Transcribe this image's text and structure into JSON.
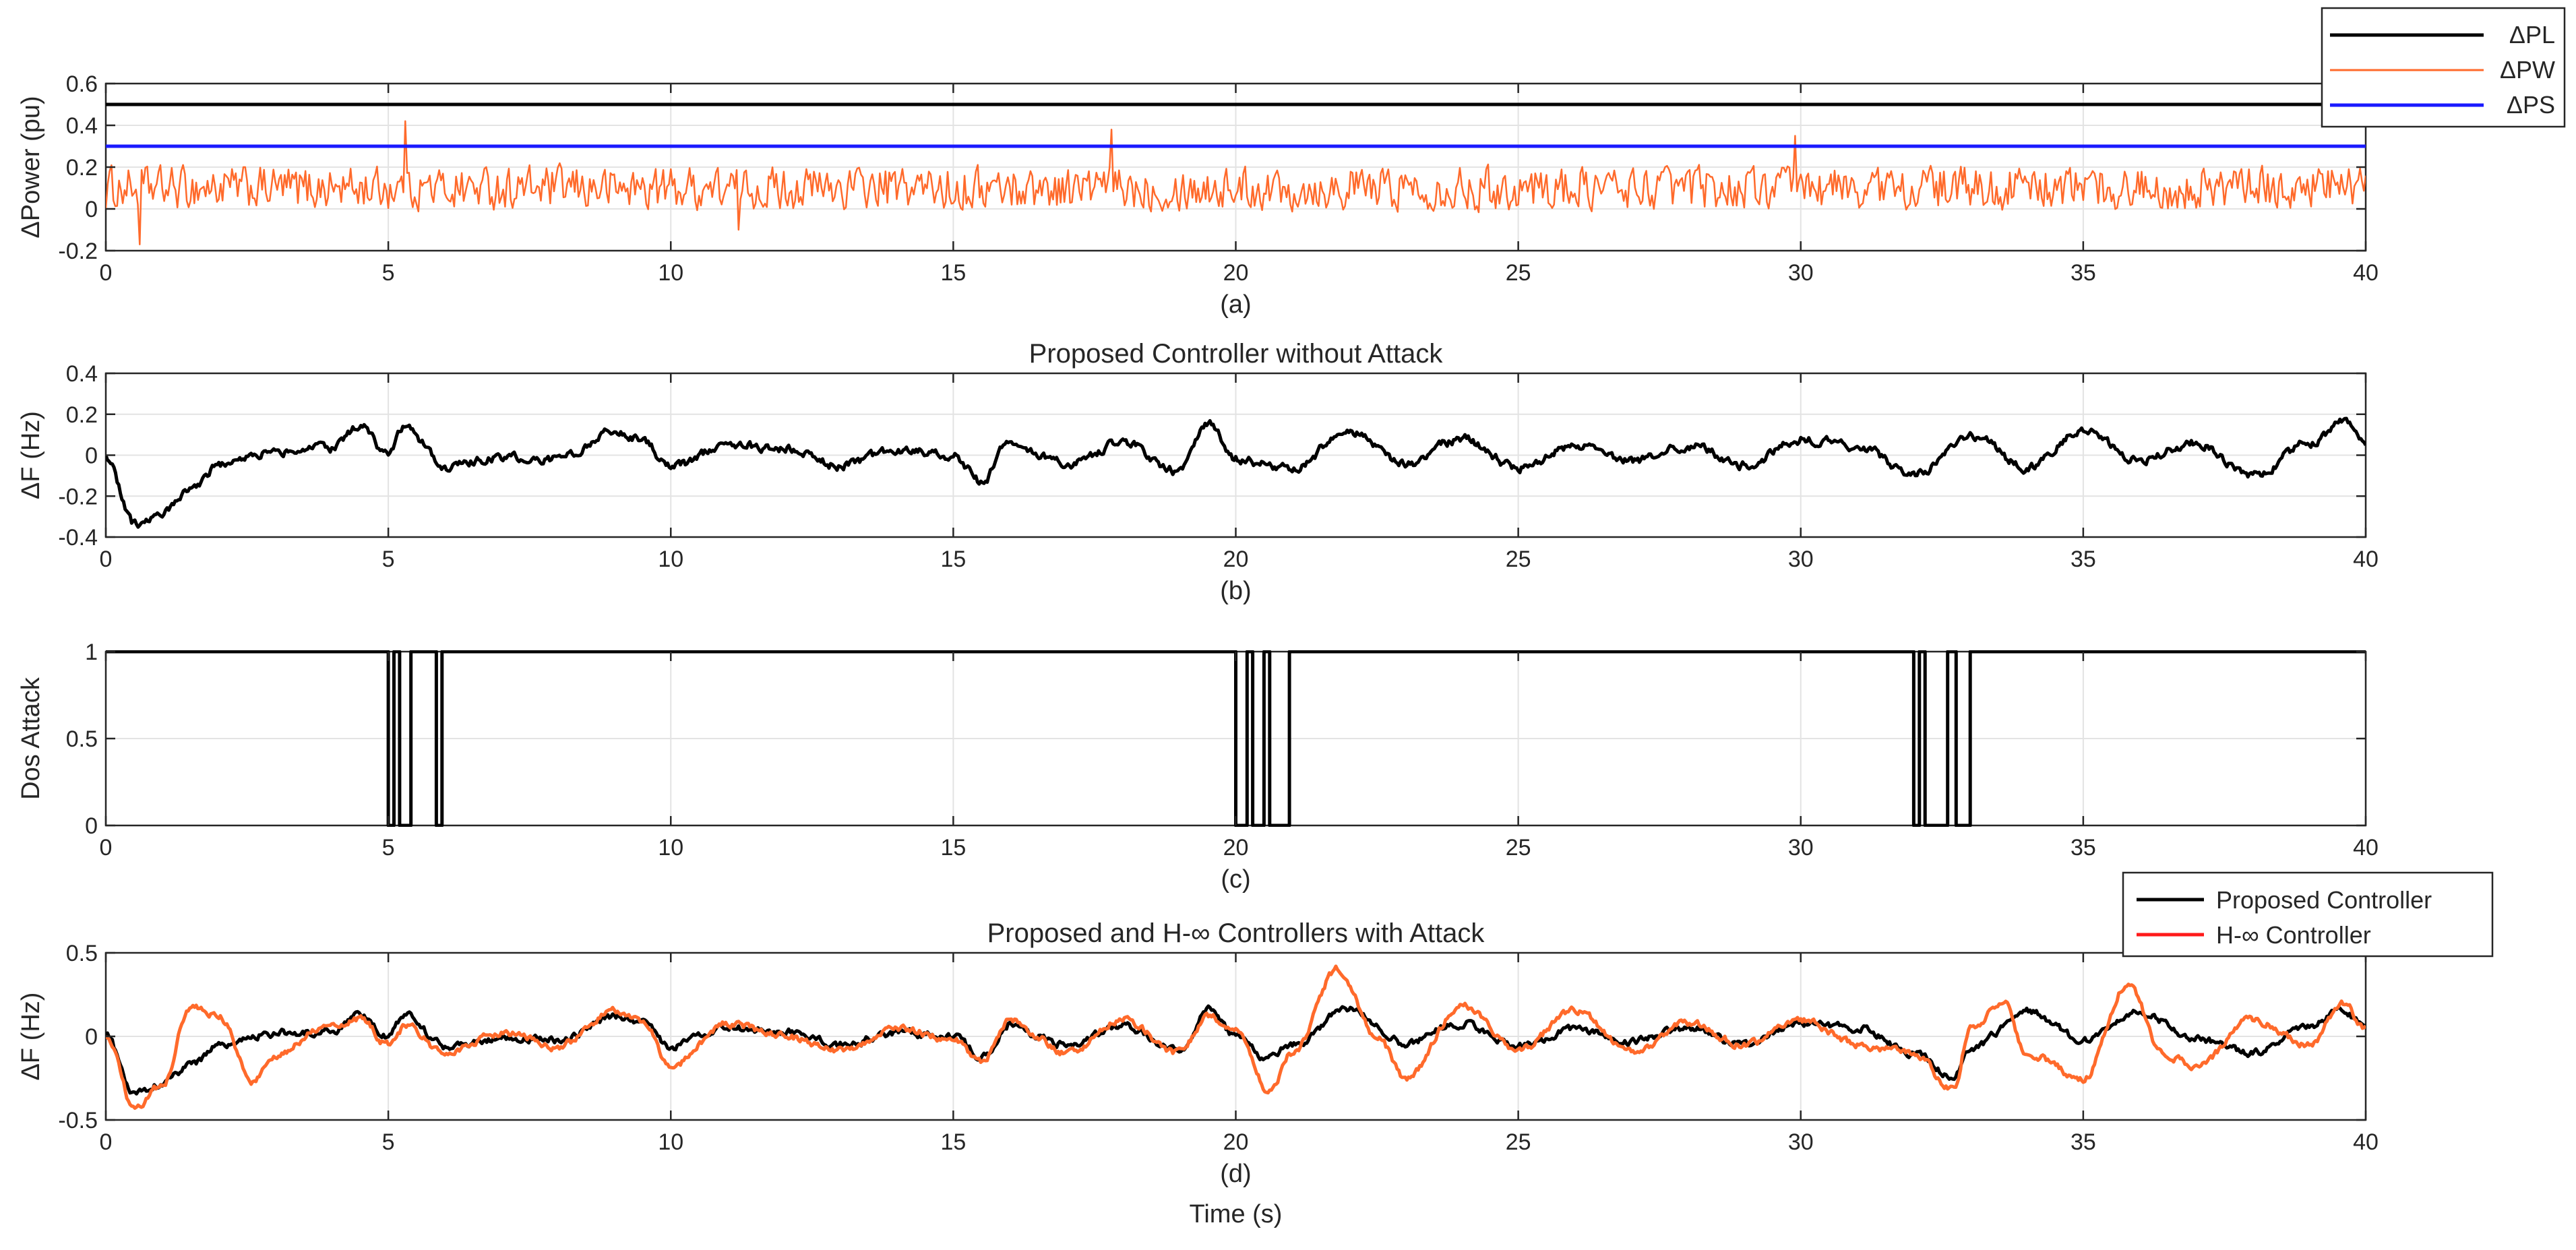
{
  "chart_data": [
    {
      "id": "a",
      "type": "line",
      "title": "",
      "caption": "(a)",
      "xlabel": "",
      "ylabel": "ΔPower (pu)",
      "xlim": [
        0,
        40
      ],
      "ylim": [
        -0.2,
        0.6
      ],
      "xticks": [
        0,
        5,
        10,
        15,
        20,
        25,
        30,
        35,
        40
      ],
      "yticks": [
        -0.2,
        0,
        0.2,
        0.4,
        0.6
      ],
      "grid": true,
      "legend": "outside-top-right",
      "series": [
        {
          "name": "ΔPL",
          "color": "#000000",
          "kind": "constant",
          "value": 0.5
        },
        {
          "name": "ΔPW",
          "color": "#ff6a2b",
          "kind": "noise",
          "mean": 0.1,
          "amplitude": 0.09,
          "min": -0.17,
          "max": 0.42,
          "peaks": [
            [
              5.3,
              0.42
            ],
            [
              17.8,
              0.38
            ],
            [
              29.9,
              0.35
            ],
            [
              0.6,
              -0.17
            ],
            [
              11.2,
              -0.1
            ]
          ]
        },
        {
          "name": "ΔPS",
          "color": "#1a1aff",
          "kind": "constant",
          "value": 0.3
        }
      ]
    },
    {
      "id": "b",
      "type": "line",
      "title": "Proposed Controller without Attack",
      "caption": "(b)",
      "xlabel": "",
      "ylabel": "ΔF (Hz)",
      "xlim": [
        0,
        40
      ],
      "ylim": [
        -0.4,
        0.4
      ],
      "xticks": [
        0,
        5,
        10,
        15,
        20,
        25,
        30,
        35,
        40
      ],
      "yticks": [
        -0.4,
        -0.2,
        0,
        0.2,
        0.4
      ],
      "grid": true,
      "series": [
        {
          "name": "",
          "color": "#000000",
          "kind": "smooth",
          "x": [
            0,
            0.5,
            1,
            1.5,
            2,
            3,
            4,
            4.5,
            5,
            5.3,
            6,
            7,
            8,
            9,
            9.5,
            10,
            11,
            12,
            13,
            14,
            15,
            15.5,
            16,
            16.5,
            17,
            18,
            19,
            19.5,
            20,
            21,
            22,
            23,
            24,
            25,
            26,
            27,
            28,
            29,
            30,
            31,
            32,
            33,
            34,
            35,
            36,
            37,
            38,
            39,
            39.6,
            40
          ],
          "y": [
            0,
            -0.34,
            -0.28,
            -0.18,
            -0.05,
            0.02,
            0.03,
            0.14,
            0.0,
            0.14,
            -0.06,
            -0.01,
            -0.02,
            0.12,
            0.08,
            -0.06,
            0.05,
            0.03,
            -0.05,
            0.02,
            0.0,
            -0.13,
            0.08,
            0.0,
            -0.05,
            0.06,
            -0.08,
            0.16,
            -0.02,
            -0.07,
            0.12,
            -0.04,
            0.08,
            -0.06,
            0.04,
            -0.03,
            0.05,
            -0.05,
            0.08,
            0.05,
            -0.1,
            0.1,
            -0.06,
            0.12,
            -0.02,
            0.06,
            -0.1,
            0.06,
            0.16,
            0.05
          ]
        }
      ]
    },
    {
      "id": "c",
      "type": "line",
      "title": "",
      "caption": "(c)",
      "xlabel": "",
      "ylabel": "Dos Attack",
      "xlim": [
        0,
        40
      ],
      "ylim": [
        0,
        1
      ],
      "xticks": [
        0,
        5,
        10,
        15,
        20,
        25,
        30,
        35,
        40
      ],
      "yticks": [
        0,
        0.5,
        1
      ],
      "grid": true,
      "series": [
        {
          "name": "",
          "color": "#000000",
          "kind": "step",
          "off_intervals": [
            [
              5.0,
              5.1
            ],
            [
              5.2,
              5.4
            ],
            [
              5.85,
              5.95
            ],
            [
              20.0,
              20.2
            ],
            [
              20.3,
              20.5
            ],
            [
              20.6,
              20.95
            ],
            [
              32.0,
              32.1
            ],
            [
              32.2,
              32.6
            ],
            [
              32.75,
              33.0
            ]
          ]
        }
      ]
    },
    {
      "id": "d",
      "type": "line",
      "title": "Proposed and H-∞ Controllers with Attack",
      "caption": "(d)",
      "xlabel": "Time (s)",
      "ylabel": "ΔF (Hz)",
      "xlim": [
        0,
        40
      ],
      "ylim": [
        -0.5,
        0.5
      ],
      "xticks": [
        0,
        5,
        10,
        15,
        20,
        25,
        30,
        35,
        40
      ],
      "yticks": [
        -0.5,
        0,
        0.5
      ],
      "grid": true,
      "legend": "top-right",
      "series": [
        {
          "name": "Proposed Controller",
          "color": "#000000",
          "kind": "smooth",
          "x": [
            0,
            0.5,
            1,
            1.5,
            2,
            3,
            4,
            4.5,
            5,
            5.3,
            6,
            7,
            8,
            9,
            9.5,
            10,
            11,
            12,
            13,
            14,
            15,
            15.5,
            16,
            16.5,
            17,
            18,
            19,
            19.5,
            20,
            20.5,
            21,
            22,
            23,
            24,
            25,
            26,
            27,
            28,
            29,
            30,
            31,
            32,
            32.7,
            33,
            34,
            35,
            36,
            37,
            38,
            39,
            39.6,
            40
          ],
          "y": [
            0,
            -0.34,
            -0.28,
            -0.18,
            -0.05,
            0.02,
            0.03,
            0.14,
            0.0,
            0.14,
            -0.06,
            -0.01,
            -0.02,
            0.12,
            0.08,
            -0.06,
            0.05,
            0.03,
            -0.05,
            0.02,
            0.0,
            -0.13,
            0.08,
            0.0,
            -0.05,
            0.06,
            -0.08,
            0.16,
            0.0,
            -0.12,
            -0.05,
            0.17,
            -0.04,
            0.08,
            -0.06,
            0.04,
            -0.03,
            0.05,
            -0.05,
            0.08,
            0.05,
            -0.1,
            -0.24,
            -0.08,
            0.15,
            -0.02,
            0.15,
            -0.02,
            -0.1,
            0.06,
            0.16,
            0.05
          ]
        },
        {
          "name": "H-∞ Controller",
          "color": "#ff6a2b",
          "kind": "smooth",
          "x": [
            0,
            0.5,
            1,
            1.5,
            2,
            2.6,
            3,
            4,
            4.5,
            5,
            5.3,
            6,
            7,
            8,
            9,
            9.5,
            10,
            11,
            12,
            13,
            14,
            15,
            15.5,
            16,
            16.5,
            17,
            18,
            19,
            19.5,
            20,
            20.6,
            21,
            21.8,
            22.5,
            23,
            24,
            25,
            26,
            27,
            28,
            29,
            30,
            31,
            32,
            32.7,
            33,
            33.6,
            34,
            35,
            35.8,
            36.4,
            37,
            38,
            39,
            39.6,
            40
          ],
          "y": [
            0,
            -0.42,
            -0.3,
            0.18,
            0.12,
            -0.27,
            -0.1,
            0.08,
            0.1,
            -0.05,
            0.06,
            -0.1,
            0.02,
            -0.06,
            0.15,
            0.1,
            -0.18,
            0.08,
            0.0,
            -0.08,
            0.05,
            -0.02,
            -0.15,
            0.1,
            -0.02,
            -0.1,
            0.1,
            -0.1,
            0.12,
            0.04,
            -0.33,
            -0.1,
            0.4,
            0.0,
            -0.25,
            0.18,
            -0.08,
            0.15,
            -0.1,
            0.08,
            -0.05,
            0.1,
            -0.05,
            -0.1,
            -0.32,
            0.05,
            0.2,
            -0.1,
            -0.25,
            0.32,
            -0.1,
            -0.18,
            0.1,
            -0.05,
            0.2,
            0.05
          ]
        }
      ]
    }
  ]
}
